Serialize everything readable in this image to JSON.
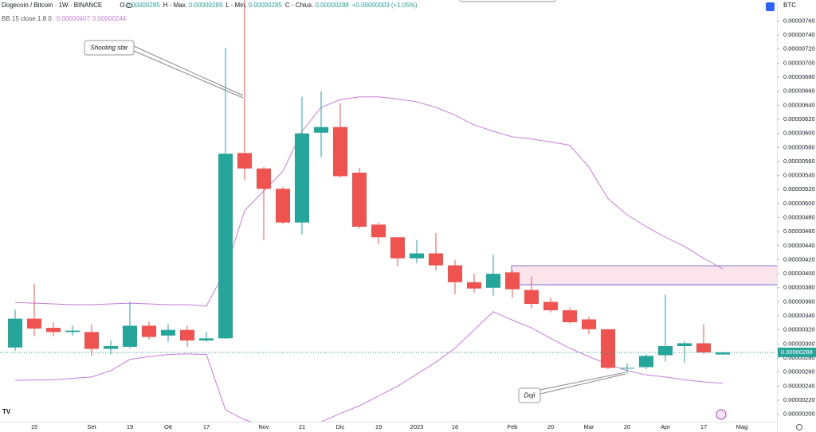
{
  "chart_data": {
    "type": "candlestick",
    "title": "Dogecoin / Bitcoin · 1W · BINANCE",
    "ohlc_legend": {
      "o_label": "O",
      "o": "0.00000285",
      "h_label": "H - Max.",
      "h": "0.00000289",
      "l_label": "L - Min.",
      "l": "0.00000285",
      "c_label": "C - Chius.",
      "c": "0.00000288",
      "change": "+0.00000003 (+1.05%)"
    },
    "currency": "BTC",
    "up_color": "#26a69a",
    "down_color": "#ef5350",
    "categories": [
      null,
      "15",
      null,
      null,
      "Set",
      null,
      "19",
      null,
      "Ott",
      null,
      "17",
      null,
      null,
      "Nov",
      null,
      "21",
      null,
      "Dic",
      null,
      "19",
      null,
      "2023",
      null,
      "16",
      null,
      null,
      "Feb",
      null,
      "20",
      null,
      "Mar",
      null,
      "20",
      null,
      "Apr",
      null,
      "17",
      null,
      "Mag"
    ],
    "open": [
      2.95e-06,
      3.36e-06,
      3.23e-06,
      3.17e-06,
      3.17e-06,
      2.93e-06,
      2.96e-06,
      3.26e-06,
      3.12e-06,
      3.2e-06,
      3.05e-06,
      3.08e-06,
      5.72e-06,
      5.5e-06,
      5.21e-06,
      4.73e-06,
      6.01e-06,
      6.09e-06,
      5.44e-06,
      4.7e-06,
      4.52e-06,
      4.22e-06,
      4.29e-06,
      4.12e-06,
      3.88e-06,
      3.8e-06,
      4.02e-06,
      3.77e-06,
      3.6e-06,
      3.48e-06,
      3.35e-06,
      3.21e-06,
      2.65e-06,
      2.67e-06,
      2.84e-06,
      2.97e-06,
      3.01e-06,
      2.85e-06,
      null
    ],
    "high": [
      3.49e-06,
      3.86e-06,
      3.31e-06,
      3.26e-06,
      3.28e-06,
      3.05e-06,
      3.6e-06,
      3.32e-06,
      3.28e-06,
      3.26e-06,
      3.17e-06,
      7.22e-06,
      7.9e-06,
      5.52e-06,
      5.24e-06,
      6.52e-06,
      6.6e-06,
      6.43e-06,
      5.51e-06,
      4.73e-06,
      4.53e-06,
      4.48e-06,
      4.58e-06,
      4.2e-06,
      4e-06,
      4.27e-06,
      4.05e-06,
      3.96e-06,
      3.66e-06,
      3.52e-06,
      3.39e-06,
      3.21e-06,
      2.72e-06,
      2.85e-06,
      3.7e-06,
      3.04e-06,
      3.28e-06,
      2.89e-06,
      null
    ],
    "low": [
      2.9e-06,
      3.11e-06,
      3.11e-06,
      3.12e-06,
      2.83e-06,
      2.85e-06,
      2.94e-06,
      3.06e-06,
      3.03e-06,
      2.96e-06,
      3.03e-06,
      3.07e-06,
      5.33e-06,
      4.48e-06,
      4.71e-06,
      4.56e-06,
      5.66e-06,
      5.37e-06,
      4.64e-06,
      4.42e-06,
      4.11e-06,
      4.15e-06,
      4.05e-06,
      3.71e-06,
      3.73e-06,
      3.69e-06,
      3.66e-06,
      3.51e-06,
      3.45e-06,
      3.29e-06,
      3.14e-06,
      2.64e-06,
      2.58e-06,
      2.64e-06,
      2.75e-06,
      2.73e-06,
      2.86e-06,
      2.85e-06,
      null
    ],
    "close": [
      3.36e-06,
      3.22e-06,
      3.17e-06,
      3.19e-06,
      2.93e-06,
      2.97e-06,
      3.26e-06,
      3.1e-06,
      3.2e-06,
      3.05e-06,
      3.08e-06,
      5.71e-06,
      5.5e-06,
      5.21e-06,
      4.73e-06,
      6e-06,
      6.09e-06,
      5.39e-06,
      4.67e-06,
      4.52e-06,
      4.22e-06,
      4.29e-06,
      4.12e-06,
      3.88e-06,
      3.79e-06,
      4e-06,
      3.78e-06,
      3.57e-06,
      3.48e-06,
      3.31e-06,
      3.21e-06,
      2.66e-06,
      2.66e-06,
      2.83e-06,
      2.97e-06,
      3.01e-06,
      2.88e-06,
      2.88e-06,
      null
    ],
    "indicator": {
      "name": "BB 15 close 1.8 0",
      "upper_label": "0.00000407",
      "lower_label": "0.00000244",
      "color": "#c77ddb",
      "upper": [
        3.59e-06,
        3.58e-06,
        3.57e-06,
        3.56e-06,
        3.56e-06,
        3.57e-06,
        3.58e-06,
        3.57e-06,
        3.56e-06,
        3.56e-06,
        3.54e-06,
        4.05e-06,
        4.9e-06,
        5.18e-06,
        5.46e-06,
        6.03e-06,
        6.37e-06,
        6.48e-06,
        6.52e-06,
        6.52e-06,
        6.49e-06,
        6.45e-06,
        6.37e-06,
        6.26e-06,
        6.12e-06,
        6.03e-06,
        5.95e-06,
        5.92e-06,
        5.88e-06,
        5.83e-06,
        5.52e-06,
        5.07e-06,
        4.84e-06,
        4.67e-06,
        4.52e-06,
        4.39e-06,
        4.22e-06,
        4.07e-06,
        null
      ],
      "lower": [
        2.48e-06,
        2.49e-06,
        2.49e-06,
        2.51e-06,
        2.53e-06,
        2.62e-06,
        2.78e-06,
        2.82e-06,
        2.85e-06,
        2.86e-06,
        2.85e-06,
        2.06e-06,
        1.92e-06,
        1.84e-06,
        1.78e-06,
        1.81e-06,
        1.89e-06,
        2.01e-06,
        2.12e-06,
        2.26e-06,
        2.4e-06,
        2.57e-06,
        2.74e-06,
        2.94e-06,
        3.2e-06,
        3.46e-06,
        3.34e-06,
        3.23e-06,
        3.08e-06,
        2.94e-06,
        2.82e-06,
        2.71e-06,
        2.62e-06,
        2.56e-06,
        2.53e-06,
        2.49e-06,
        2.46e-06,
        2.44e-06,
        null
      ]
    },
    "last_price": {
      "value": 2.88e-06,
      "label": "0.00000288"
    },
    "annotations": [
      "Shooting star",
      "Doji"
    ],
    "ylim": [
      1.78e-06,
      7.9e-06
    ],
    "yticks": [
      {
        "value": 7.6e-06,
        "label": "0.00000760"
      },
      {
        "value": 7.4e-06,
        "label": "0.00000740"
      },
      {
        "value": 7.2e-06,
        "label": "0.00000720"
      },
      {
        "value": 7e-06,
        "label": "0.00000700"
      },
      {
        "value": 6.8e-06,
        "label": "0.00000680"
      },
      {
        "value": 6.6e-06,
        "label": "0.00000660"
      },
      {
        "value": 6.4e-06,
        "label": "0.00000640"
      },
      {
        "value": 6.2e-06,
        "label": "0.00000620"
      },
      {
        "value": 6e-06,
        "label": "0.00000600"
      },
      {
        "value": 5.8e-06,
        "label": "0.00000580"
      },
      {
        "value": 5.6e-06,
        "label": "0.00000560"
      },
      {
        "value": 5.4e-06,
        "label": "0.00000540"
      },
      {
        "value": 5.2e-06,
        "label": "0.00000520"
      },
      {
        "value": 5e-06,
        "label": "0.00000500"
      },
      {
        "value": 4.8e-06,
        "label": "0.00000480"
      },
      {
        "value": 4.6e-06,
        "label": "0.00000460"
      },
      {
        "value": 4.4e-06,
        "label": "0.00000440"
      },
      {
        "value": 4.2e-06,
        "label": "0.00000420"
      },
      {
        "value": 4e-06,
        "label": "0.00000400"
      },
      {
        "value": 3.8e-06,
        "label": "0.00000380"
      },
      {
        "value": 3.6e-06,
        "label": "0.00000360"
      },
      {
        "value": 3.4e-06,
        "label": "0.00000340"
      },
      {
        "value": 3.2e-06,
        "label": "0.00000320"
      },
      {
        "value": 3e-06,
        "label": "0.00000300"
      },
      {
        "value": 2.8e-06,
        "label": "0.00000280"
      },
      {
        "value": 2.6e-06,
        "label": "0.00000260"
      },
      {
        "value": 2.4e-06,
        "label": "0.00000240"
      },
      {
        "value": 2.2e-06,
        "label": "0.00000220"
      },
      {
        "value": 2e-06,
        "label": "0.00000200"
      }
    ]
  }
}
